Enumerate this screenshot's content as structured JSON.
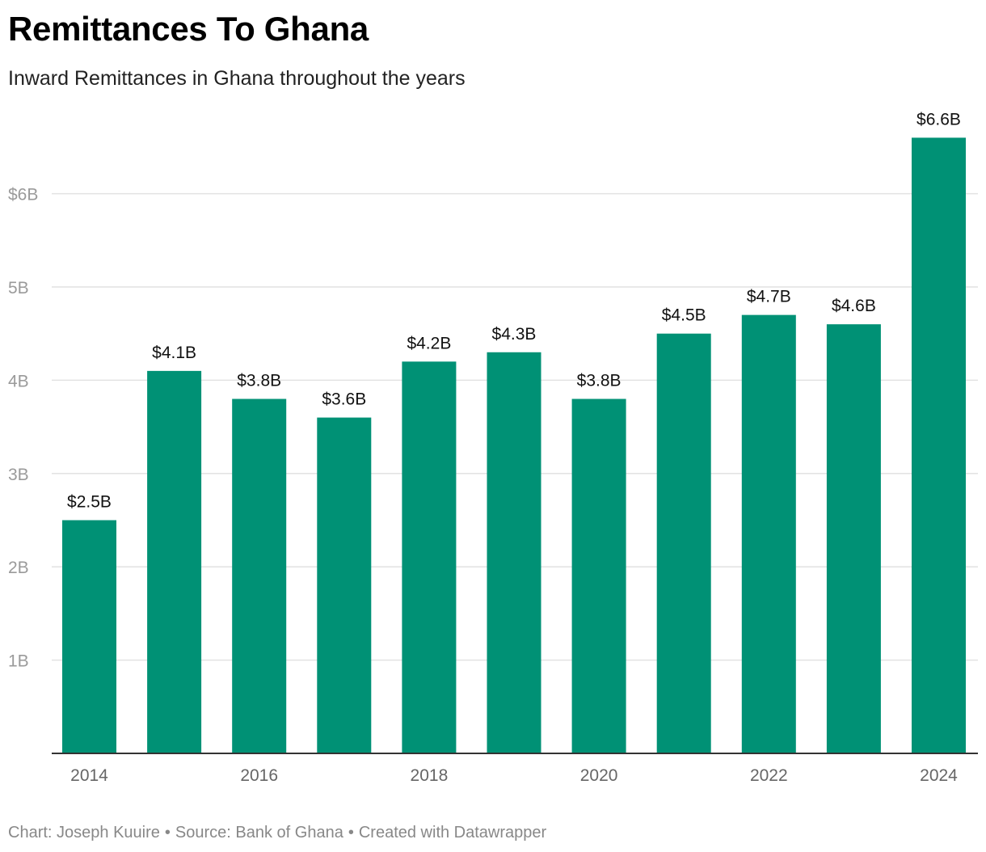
{
  "chart_data": {
    "type": "bar",
    "title": "Remittances To Ghana",
    "subtitle": "Inward Remittances in Ghana throughout the years",
    "categories": [
      "2014",
      "2015",
      "2016",
      "2017",
      "2018",
      "2019",
      "2020",
      "2021",
      "2022",
      "2023",
      "2024"
    ],
    "values": [
      2.5,
      4.1,
      3.8,
      3.6,
      4.2,
      4.3,
      3.8,
      4.5,
      4.7,
      4.6,
      6.6
    ],
    "value_labels": [
      "$2.5B",
      "$4.1B",
      "$3.8B",
      "$3.6B",
      "$4.2B",
      "$4.3B",
      "$3.8B",
      "$4.5B",
      "$4.7B",
      "$4.6B",
      "$6.6B"
    ],
    "x_tick_labels": [
      "2014",
      "2016",
      "2018",
      "2020",
      "2022",
      "2024"
    ],
    "y_ticks": [
      1,
      2,
      3,
      4,
      5,
      6
    ],
    "y_tick_labels": [
      "1B",
      "2B",
      "3B",
      "4B",
      "5B",
      "$6B"
    ],
    "ylim": [
      0,
      6.8
    ],
    "xlabel": "",
    "ylabel": "",
    "grid": true,
    "bar_color": "#009175"
  },
  "footer": {
    "chart_by": "Chart: Joseph Kuuire",
    "source": "Source: Bank of Ghana",
    "credit": "Created with Datawrapper",
    "separator": "•"
  }
}
